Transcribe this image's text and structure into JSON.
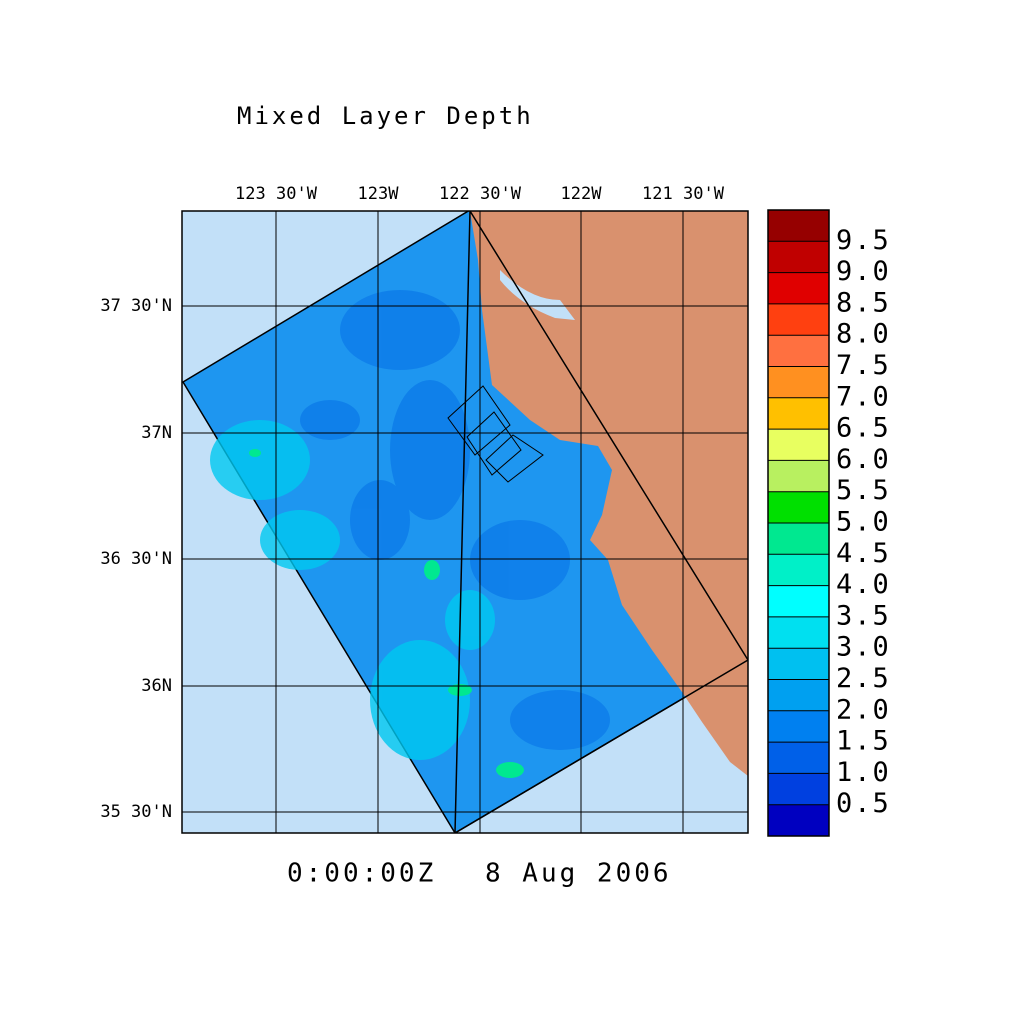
{
  "title": "Mixed Layer Depth",
  "time": "0:00:00Z",
  "date": "8 Aug 2006",
  "map": {
    "lon_labels": [
      "123 30'W",
      "123W",
      "122 30'W",
      "122W",
      "121 30'W"
    ],
    "lat_labels": [
      "37 30'N",
      "37N",
      "36 30'N",
      "36N",
      "35 30'N"
    ]
  },
  "colorbar": {
    "labels": [
      "9.5",
      "9.0",
      "8.5",
      "8.0",
      "7.5",
      "7.0",
      "6.5",
      "6.0",
      "5.5",
      "5.0",
      "4.5",
      "4.0",
      "3.5",
      "3.0",
      "2.5",
      "2.0",
      "1.5",
      "1.0",
      "0.5"
    ],
    "colors": [
      "#960000",
      "#c00000",
      "#e00000",
      "#ff4010",
      "#ff7040",
      "#ff9020",
      "#ffc000",
      "#e8ff60",
      "#b8f060",
      "#00e000",
      "#00e890",
      "#00f0c8",
      "#00ffff",
      "#00e0f0",
      "#00c0f0",
      "#00a0f0",
      "#0080f0",
      "#0060e8",
      "#0040e0",
      "#0000c0"
    ]
  }
}
